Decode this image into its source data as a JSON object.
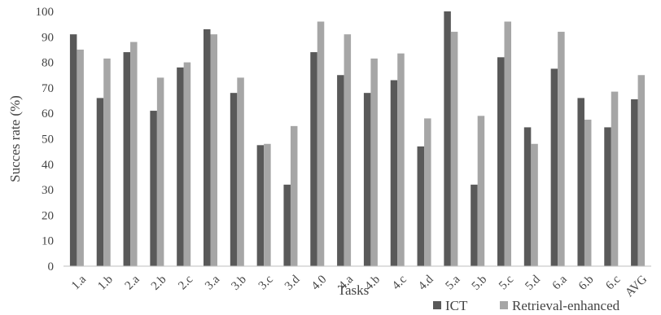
{
  "chart_data": {
    "type": "bar",
    "title": "",
    "xlabel": "Tasks",
    "ylabel": "Succes rate (%)",
    "ylim": [
      0,
      100
    ],
    "yticks": [
      0,
      10,
      20,
      30,
      40,
      50,
      60,
      70,
      80,
      90,
      100
    ],
    "grid": false,
    "legend_position": "bottom-right",
    "categories": [
      "1.a",
      "1.b",
      "2.a",
      "2.b",
      "2.c",
      "3.a",
      "3.b",
      "3.c",
      "3.d",
      "4.0",
      "4.a",
      "4.b",
      "4.c",
      "4.d",
      "5.a",
      "5.b",
      "5.c",
      "5.d",
      "6.a",
      "6.b",
      "6.c",
      "AVG"
    ],
    "series": [
      {
        "name": "ICT",
        "color": "#595959",
        "values": [
          91,
          66,
          84,
          61,
          78,
          93,
          68,
          47.5,
          32,
          84,
          75,
          68,
          73,
          47,
          100,
          32,
          82,
          54.5,
          77.5,
          66,
          54.5,
          65.5
        ]
      },
      {
        "name": "Retrieval-enhanced",
        "color": "#a6a6a6",
        "values": [
          85,
          81.5,
          88,
          74,
          80,
          91,
          74,
          48,
          55,
          96,
          91,
          81.5,
          83.5,
          58,
          92,
          59,
          96,
          48,
          92,
          57.5,
          68.5,
          75
        ]
      }
    ]
  }
}
